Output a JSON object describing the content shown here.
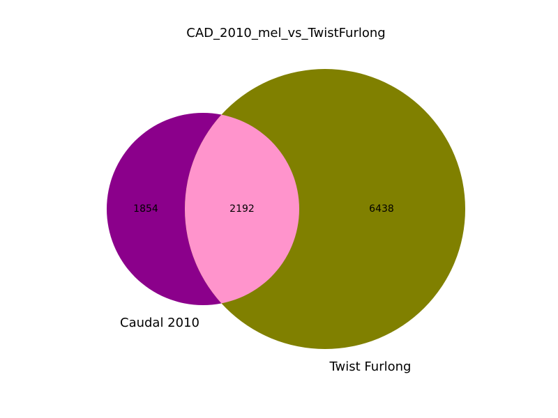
{
  "chart_data": {
    "type": "venn",
    "title": "CAD_2010_mel_vs_TwistFurlong",
    "sets": [
      {
        "name": "Caudal 2010",
        "only_count": "1854",
        "color": "#8b008b"
      },
      {
        "name": "Twist Furlong",
        "only_count": "6438",
        "color": "#808000"
      }
    ],
    "intersection": {
      "count": "2192",
      "color": "#ff94cc"
    }
  }
}
